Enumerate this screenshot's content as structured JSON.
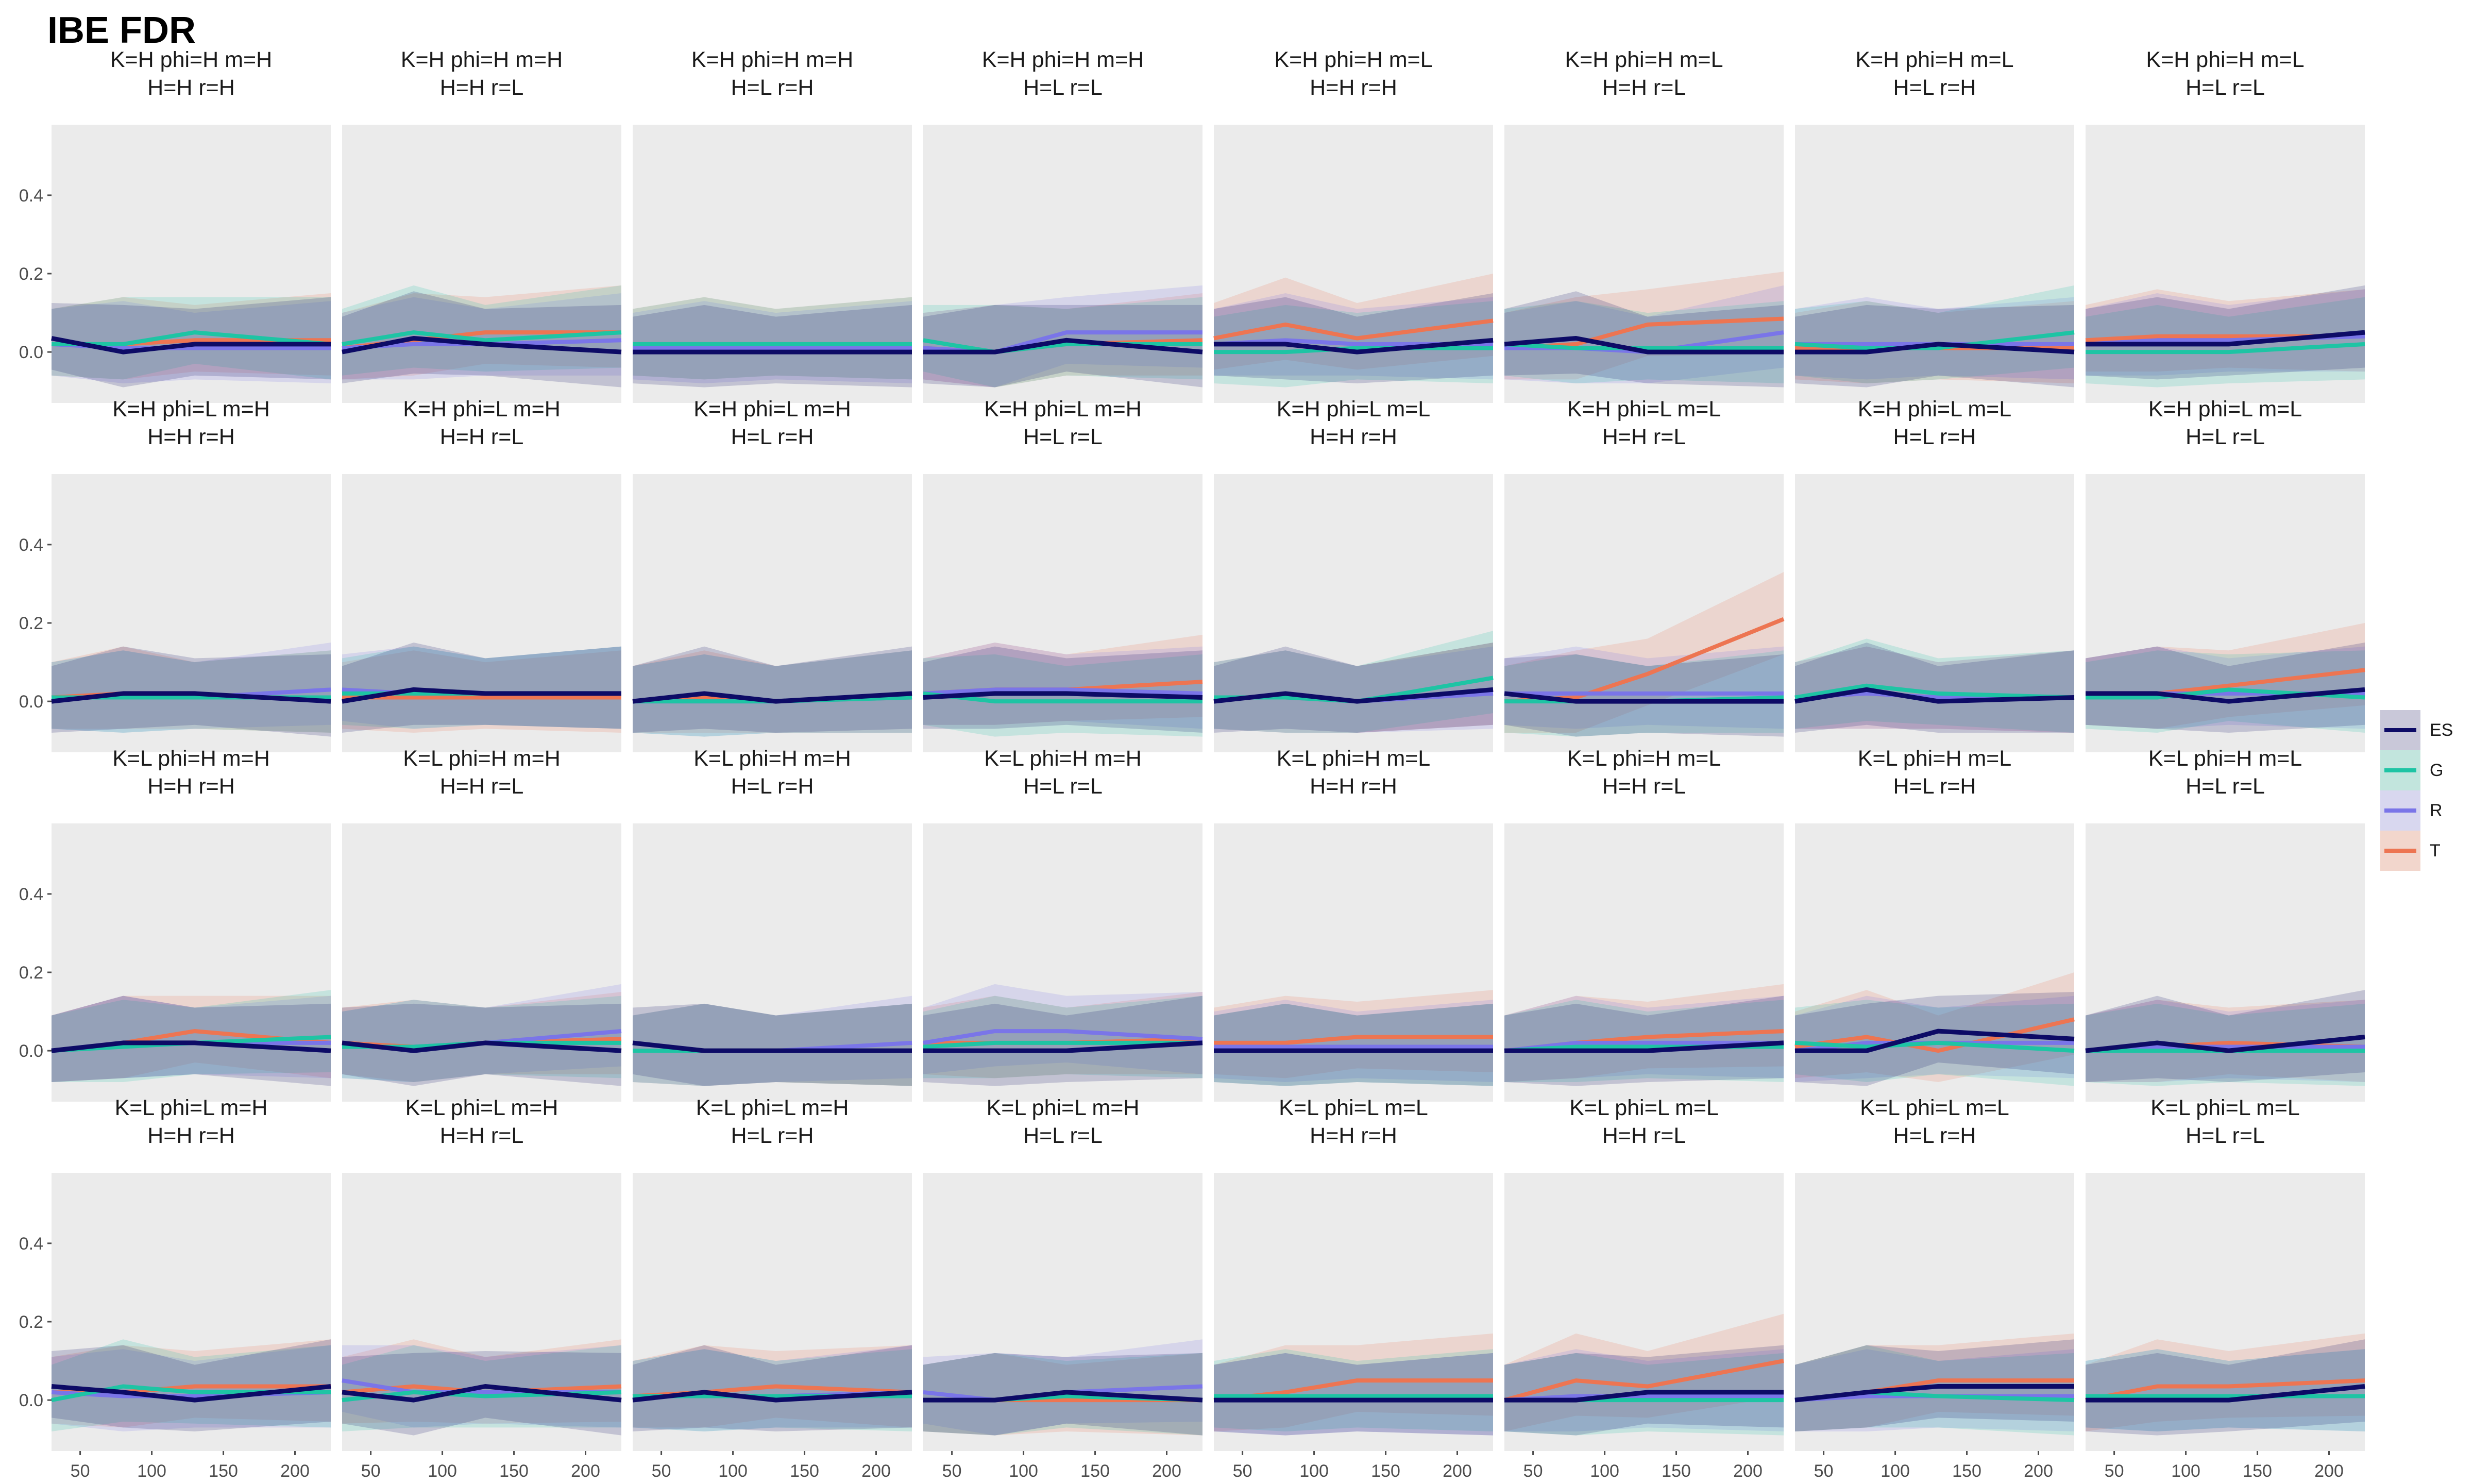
{
  "chart_data": {
    "type": "line",
    "title": "IBE FDR",
    "x": [
      50,
      100,
      150,
      200
    ],
    "xlim": [
      30,
      225
    ],
    "ylim": [
      -0.13,
      0.58
    ],
    "y_ticks": [
      0.0,
      0.2,
      0.4
    ],
    "y_tick_labels": [
      "0.0",
      "0.2",
      "0.4"
    ],
    "x_tick_labels": [
      "50",
      "100",
      "150",
      "200"
    ],
    "series_names": [
      "ES",
      "G",
      "R",
      "T"
    ],
    "colors": {
      "ES": "#0d0b66",
      "G": "#1ec4a4",
      "R": "#7a75e8",
      "T": "#ed7552",
      "panel_bg": "#ebebeb"
    },
    "points_x": [
      30,
      80,
      130,
      225
    ],
    "legend_position": "right",
    "grid": false,
    "panels": [
      {
        "title1": "K=H phi=H m=H",
        "title2": "H=H r=H",
        "ES": [
          0.035,
          0,
          0.02,
          0.02
        ],
        "G": [
          0.02,
          0.02,
          0.05,
          0.02
        ],
        "R": [
          0.02,
          0.01,
          0.01,
          0.01
        ],
        "T": [
          0.02,
          0.02,
          0.03,
          0.03
        ]
      },
      {
        "title1": "K=H phi=H m=H",
        "title2": "H=H r=L",
        "ES": [
          0,
          0.035,
          0.02,
          0
        ],
        "G": [
          0.02,
          0.05,
          0.03,
          0.05
        ],
        "R": [
          0.01,
          0.02,
          0.02,
          0.03
        ],
        "T": [
          0.01,
          0.03,
          0.05,
          0.05
        ]
      },
      {
        "title1": "K=H phi=H m=H",
        "title2": "H=L r=H",
        "ES": [
          0,
          0,
          0,
          0
        ],
        "G": [
          0.02,
          0.02,
          0.02,
          0.02
        ],
        "R": [
          0.01,
          0.01,
          0.01,
          0.01
        ],
        "T": [
          0.02,
          0.02,
          0.02,
          0.02
        ]
      },
      {
        "title1": "K=H phi=H m=H",
        "title2": "H=L r=L",
        "ES": [
          0,
          0,
          0.03,
          0
        ],
        "G": [
          0.03,
          0,
          0.02,
          0.02
        ],
        "R": [
          0.01,
          0,
          0.05,
          0.05
        ],
        "T": [
          0.01,
          0,
          0.02,
          0.03
        ]
      },
      {
        "title1": "K=H phi=H m=L",
        "title2": "H=H r=H",
        "ES": [
          0.02,
          0.02,
          0,
          0.03
        ],
        "G": [
          0,
          0,
          0.01,
          0.01
        ],
        "R": [
          0.02,
          0.03,
          0.02,
          0.02
        ],
        "T": [
          0.035,
          0.07,
          0.035,
          0.08
        ]
      },
      {
        "title1": "K=H phi=H m=L",
        "title2": "H=H r=L",
        "ES": [
          0.02,
          0.035,
          0,
          0
        ],
        "G": [
          0.02,
          0.01,
          0.01,
          0.01
        ],
        "R": [
          0.01,
          0.01,
          0,
          0.05
        ],
        "T": [
          0.01,
          0.02,
          0.07,
          0.085
        ]
      },
      {
        "title1": "K=H phi=H m=L",
        "title2": "H=L r=H",
        "ES": [
          0,
          0,
          0.02,
          0
        ],
        "G": [
          0.02,
          0.01,
          0.01,
          0.05
        ],
        "R": [
          0.02,
          0.02,
          0.02,
          0.02
        ],
        "T": [
          0.01,
          0.01,
          0.01,
          0.01
        ]
      },
      {
        "title1": "K=H phi=H m=L",
        "title2": "H=L r=L",
        "ES": [
          0.02,
          0.02,
          0.02,
          0.05
        ],
        "G": [
          0,
          0,
          0,
          0.02
        ],
        "R": [
          0.02,
          0.03,
          0.03,
          0.04
        ],
        "T": [
          0.03,
          0.04,
          0.04,
          0.04
        ]
      },
      {
        "title1": "K=H phi=L m=H",
        "title2": "H=H r=H",
        "ES": [
          0,
          0.02,
          0.02,
          0
        ],
        "G": [
          0.01,
          0.01,
          0.01,
          0.01
        ],
        "R": [
          0.01,
          0.01,
          0.01,
          0.03
        ],
        "T": [
          0.01,
          0.02,
          0.01,
          0.01
        ]
      },
      {
        "title1": "K=H phi=L m=H",
        "title2": "H=H r=L",
        "ES": [
          0,
          0.03,
          0.02,
          0.02
        ],
        "G": [
          0.02,
          0.02,
          0.02,
          0.02
        ],
        "R": [
          0.03,
          0.02,
          0.02,
          0.02
        ],
        "T": [
          0.01,
          0.01,
          0.01,
          0.01
        ]
      },
      {
        "title1": "K=H phi=L m=H",
        "title2": "H=L r=H",
        "ES": [
          0,
          0.02,
          0,
          0.02
        ],
        "G": [
          0,
          0,
          0,
          0.01
        ],
        "R": [
          0,
          0,
          0,
          0.01
        ],
        "T": [
          0,
          0.01,
          0,
          0.01
        ]
      },
      {
        "title1": "K=H phi=L m=H",
        "title2": "H=L r=L",
        "ES": [
          0.01,
          0.02,
          0.02,
          0.01
        ],
        "G": [
          0.02,
          0,
          0,
          0
        ],
        "R": [
          0.02,
          0.03,
          0.03,
          0.02
        ],
        "T": [
          0.02,
          0.03,
          0.03,
          0.05
        ]
      },
      {
        "title1": "K=H phi=L m=L",
        "title2": "H=H r=H",
        "ES": [
          0,
          0.02,
          0,
          0.03
        ],
        "G": [
          0.01,
          0.01,
          0,
          0.06
        ],
        "R": [
          0.01,
          0.01,
          0,
          0.02
        ],
        "T": [
          0.01,
          0.01,
          0,
          0.03
        ]
      },
      {
        "title1": "K=H phi=L m=L",
        "title2": "H=H r=L",
        "ES": [
          0.02,
          0,
          0,
          0
        ],
        "G": [
          0,
          0,
          0,
          0.01
        ],
        "R": [
          0.02,
          0.02,
          0.02,
          0.02
        ],
        "T": [
          0,
          0.01,
          0.07,
          0.21
        ]
      },
      {
        "title1": "K=H phi=L m=L",
        "title2": "H=L r=H",
        "ES": [
          0,
          0.03,
          0,
          0.01
        ],
        "G": [
          0.01,
          0.04,
          0.02,
          0.01
        ],
        "R": [
          0.01,
          0.02,
          0.01,
          0.01
        ],
        "T": [
          0.01,
          0.02,
          0.01,
          0.01
        ]
      },
      {
        "title1": "K=H phi=L m=L",
        "title2": "H=L r=L",
        "ES": [
          0.02,
          0.02,
          0,
          0.03
        ],
        "G": [
          0.01,
          0.01,
          0.03,
          0.01
        ],
        "R": [
          0.02,
          0.02,
          0.02,
          0.02
        ],
        "T": [
          0.02,
          0.02,
          0.04,
          0.08
        ]
      },
      {
        "title1": "K=L phi=H m=H",
        "title2": "H=H r=H",
        "ES": [
          0,
          0.02,
          0.02,
          0
        ],
        "G": [
          0,
          0.01,
          0.02,
          0.035
        ],
        "R": [
          0,
          0.02,
          0.02,
          0.02
        ],
        "T": [
          0,
          0.02,
          0.05,
          0.02
        ]
      },
      {
        "title1": "K=L phi=H m=H",
        "title2": "H=H r=L",
        "ES": [
          0.02,
          0,
          0.02,
          0
        ],
        "G": [
          0.01,
          0.01,
          0.02,
          0.02
        ],
        "R": [
          0.01,
          0.01,
          0.02,
          0.05
        ],
        "T": [
          0.02,
          0.01,
          0.02,
          0.03
        ]
      },
      {
        "title1": "K=L phi=H m=H",
        "title2": "H=L r=H",
        "ES": [
          0.02,
          0,
          0,
          0
        ],
        "G": [
          0,
          0,
          0,
          0
        ],
        "R": [
          0,
          0,
          0,
          0.02
        ],
        "T": [
          0,
          0,
          0,
          0
        ]
      },
      {
        "title1": "K=L phi=H m=H",
        "title2": "H=L r=L",
        "ES": [
          0,
          0,
          0,
          0.02
        ],
        "G": [
          0.01,
          0.02,
          0.02,
          0.02
        ],
        "R": [
          0.02,
          0.05,
          0.05,
          0.03
        ],
        "T": [
          0.02,
          0.02,
          0.02,
          0.03
        ]
      },
      {
        "title1": "K=L phi=H m=L",
        "title2": "H=H r=H",
        "ES": [
          0,
          0,
          0,
          0
        ],
        "G": [
          0,
          0,
          0,
          0
        ],
        "R": [
          0.01,
          0.01,
          0.01,
          0.01
        ],
        "T": [
          0.02,
          0.02,
          0.035,
          0.035
        ]
      },
      {
        "title1": "K=L phi=H m=L",
        "title2": "H=H r=L",
        "ES": [
          0,
          0,
          0,
          0.02
        ],
        "G": [
          0,
          0.01,
          0.01,
          0.01
        ],
        "R": [
          0,
          0.02,
          0.02,
          0.02
        ],
        "T": [
          0,
          0.02,
          0.035,
          0.05
        ]
      },
      {
        "title1": "K=L phi=H m=L",
        "title2": "H=L r=H",
        "ES": [
          0,
          0,
          0.05,
          0.03
        ],
        "G": [
          0.02,
          0.01,
          0.02,
          0
        ],
        "R": [
          0,
          0.02,
          0.02,
          0.02
        ],
        "T": [
          0.01,
          0.035,
          0,
          0.08
        ]
      },
      {
        "title1": "K=L phi=H m=L",
        "title2": "H=L r=L",
        "ES": [
          0,
          0.02,
          0,
          0.035
        ],
        "G": [
          0,
          0,
          0,
          0
        ],
        "R": [
          0,
          0.01,
          0.01,
          0.01
        ],
        "T": [
          0,
          0.01,
          0.02,
          0.01
        ]
      },
      {
        "title1": "K=L phi=L m=H",
        "title2": "H=H r=H",
        "ES": [
          0.035,
          0.02,
          0,
          0.035
        ],
        "G": [
          0,
          0.035,
          0.02,
          0.02
        ],
        "R": [
          0.02,
          0.01,
          0.01,
          0.02
        ],
        "T": [
          0.02,
          0.02,
          0.035,
          0.035
        ]
      },
      {
        "title1": "K=L phi=L m=H",
        "title2": "H=H r=L",
        "ES": [
          0.02,
          0,
          0.035,
          0
        ],
        "G": [
          0,
          0.02,
          0.01,
          0.02
        ],
        "R": [
          0.05,
          0.02,
          0.02,
          0.02
        ],
        "T": [
          0.02,
          0.035,
          0.02,
          0.035
        ]
      },
      {
        "title1": "K=L phi=L m=H",
        "title2": "H=L r=H",
        "ES": [
          0,
          0.02,
          0,
          0.02
        ],
        "G": [
          0.01,
          0.01,
          0.01,
          0.01
        ],
        "R": [
          0.01,
          0.01,
          0.01,
          0.02
        ],
        "T": [
          0.01,
          0.02,
          0.035,
          0.02
        ]
      },
      {
        "title1": "K=L phi=L m=H",
        "title2": "H=L r=L",
        "ES": [
          0,
          0,
          0.02,
          0
        ],
        "G": [
          0,
          0,
          0.01,
          0
        ],
        "R": [
          0.02,
          0,
          0.02,
          0.035
        ],
        "T": [
          0,
          0,
          0,
          0
        ]
      },
      {
        "title1": "K=L phi=L m=L",
        "title2": "H=H r=H",
        "ES": [
          0,
          0,
          0,
          0
        ],
        "G": [
          0.01,
          0.01,
          0.01,
          0.01
        ],
        "R": [
          0,
          0,
          0,
          0
        ],
        "T": [
          0,
          0.02,
          0.05,
          0.05
        ]
      },
      {
        "title1": "K=L phi=L m=L",
        "title2": "H=H r=L",
        "ES": [
          0,
          0,
          0.02,
          0.02
        ],
        "G": [
          0,
          0,
          0,
          0
        ],
        "R": [
          0,
          0.01,
          0.01,
          0.01
        ],
        "T": [
          0,
          0.05,
          0.035,
          0.1
        ]
      },
      {
        "title1": "K=L phi=L m=L",
        "title2": "H=L r=H",
        "ES": [
          0,
          0.02,
          0.035,
          0.035
        ],
        "G": [
          0,
          0.02,
          0.01,
          0
        ],
        "R": [
          0,
          0.01,
          0.01,
          0.01
        ],
        "T": [
          0,
          0.02,
          0.05,
          0.05
        ]
      },
      {
        "title1": "K=L phi=L m=L",
        "title2": "H=L r=L",
        "ES": [
          0,
          0,
          0,
          0.035
        ],
        "G": [
          0.01,
          0.01,
          0.01,
          0.01
        ],
        "R": [
          0.01,
          0.01,
          0.01,
          0.01
        ],
        "T": [
          0,
          0.035,
          0.035,
          0.05
        ]
      }
    ]
  }
}
